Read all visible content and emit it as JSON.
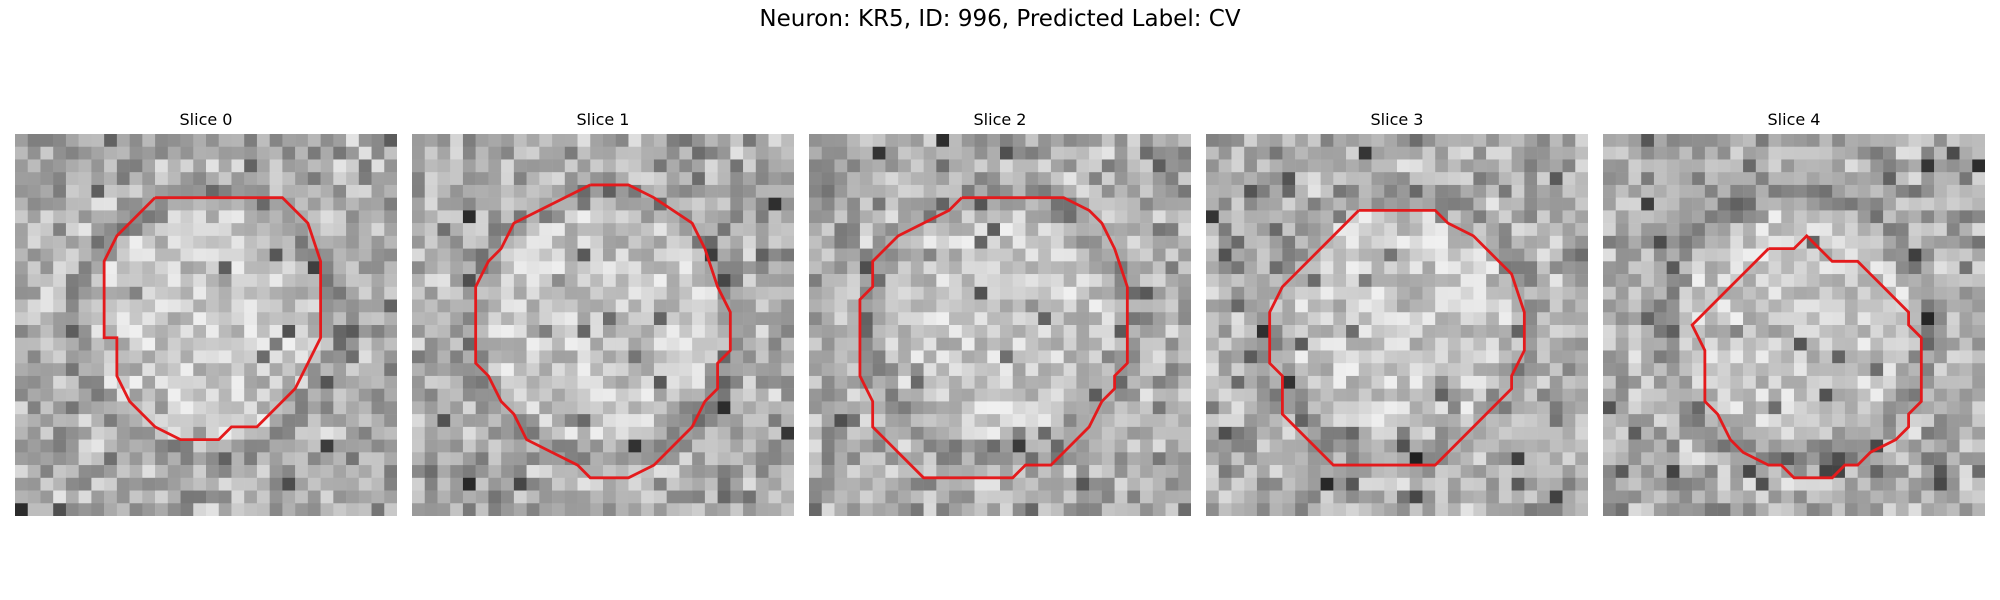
{
  "figure": {
    "title": "Neuron: KR5, ID: 996, Predicted Label: CV",
    "contour_color": "#e41a1c"
  },
  "panels": [
    {
      "title": "Slice 0",
      "seed": 11,
      "ring": 0.55
    },
    {
      "title": "Slice 1",
      "seed": 23,
      "ring": 0.6
    },
    {
      "title": "Slice 2",
      "seed": 37,
      "ring": 0.55
    },
    {
      "title": "Slice 3",
      "seed": 41,
      "ring": 0.5
    },
    {
      "title": "Slice 4",
      "seed": 53,
      "ring": 0.65
    }
  ]
}
